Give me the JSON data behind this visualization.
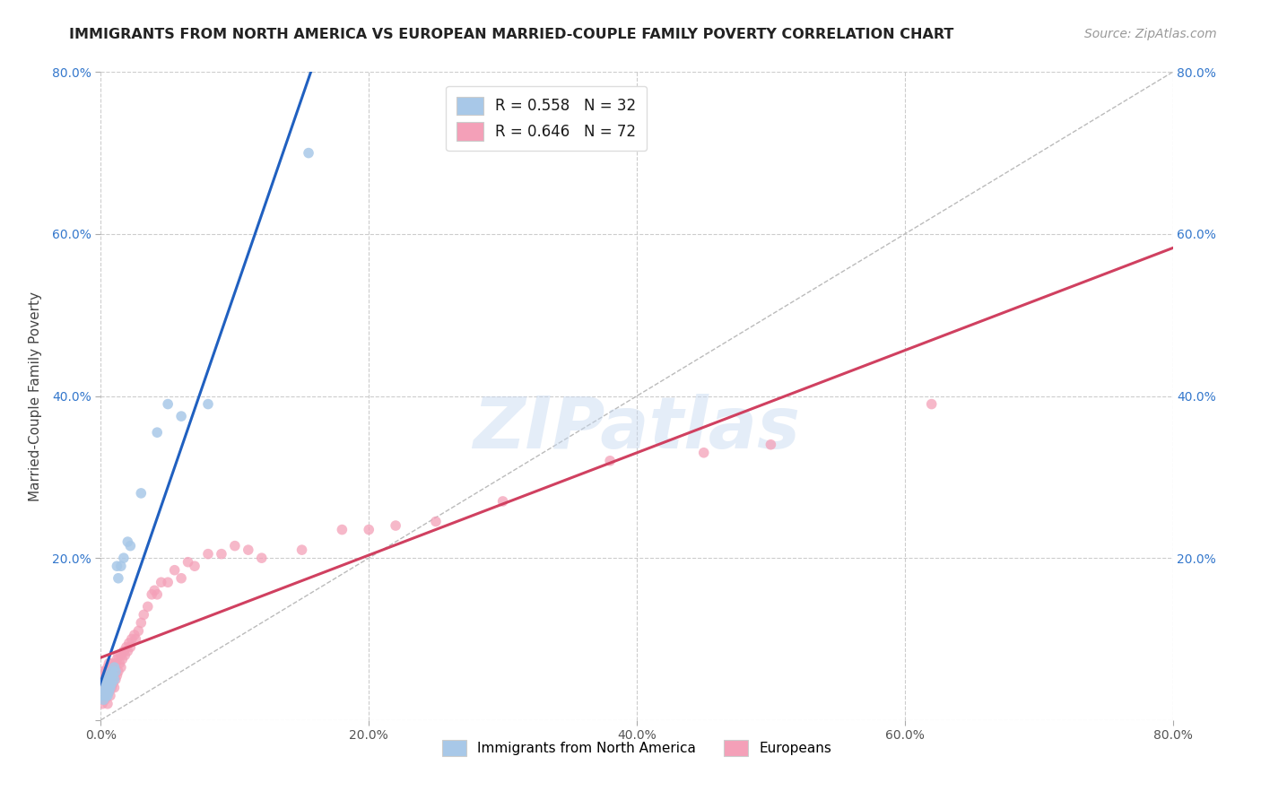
{
  "title": "IMMIGRANTS FROM NORTH AMERICA VS EUROPEAN MARRIED-COUPLE FAMILY POVERTY CORRELATION CHART",
  "source": "Source: ZipAtlas.com",
  "ylabel": "Married-Couple Family Poverty",
  "xlim": [
    0,
    0.8
  ],
  "ylim": [
    0,
    0.8
  ],
  "blue_color": "#a8c8e8",
  "pink_color": "#f4a0b8",
  "blue_line_color": "#2060c0",
  "pink_line_color": "#d04060",
  "diag_line_color": "#bbbbbb",
  "watermark": "ZIPatlas",
  "na_x": [
    0.001,
    0.002,
    0.002,
    0.003,
    0.003,
    0.004,
    0.004,
    0.004,
    0.005,
    0.005,
    0.006,
    0.006,
    0.007,
    0.007,
    0.008,
    0.008,
    0.009,
    0.01,
    0.01,
    0.011,
    0.012,
    0.013,
    0.015,
    0.017,
    0.02,
    0.022,
    0.03,
    0.042,
    0.05,
    0.06,
    0.08,
    0.155
  ],
  "na_y": [
    0.03,
    0.025,
    0.04,
    0.035,
    0.045,
    0.03,
    0.038,
    0.05,
    0.03,
    0.042,
    0.035,
    0.055,
    0.04,
    0.05,
    0.045,
    0.06,
    0.055,
    0.05,
    0.065,
    0.06,
    0.19,
    0.175,
    0.19,
    0.2,
    0.22,
    0.215,
    0.28,
    0.355,
    0.39,
    0.375,
    0.39,
    0.7
  ],
  "eu_x": [
    0.001,
    0.001,
    0.002,
    0.002,
    0.002,
    0.003,
    0.003,
    0.003,
    0.004,
    0.004,
    0.005,
    0.005,
    0.005,
    0.006,
    0.006,
    0.006,
    0.007,
    0.007,
    0.008,
    0.008,
    0.008,
    0.009,
    0.009,
    0.01,
    0.01,
    0.011,
    0.011,
    0.012,
    0.012,
    0.013,
    0.013,
    0.014,
    0.015,
    0.015,
    0.016,
    0.017,
    0.018,
    0.019,
    0.02,
    0.021,
    0.022,
    0.023,
    0.025,
    0.026,
    0.028,
    0.03,
    0.032,
    0.035,
    0.038,
    0.04,
    0.042,
    0.045,
    0.05,
    0.055,
    0.06,
    0.065,
    0.07,
    0.08,
    0.09,
    0.1,
    0.11,
    0.12,
    0.15,
    0.18,
    0.2,
    0.22,
    0.25,
    0.3,
    0.38,
    0.45,
    0.5,
    0.62
  ],
  "eu_y": [
    0.02,
    0.045,
    0.03,
    0.05,
    0.06,
    0.025,
    0.04,
    0.055,
    0.035,
    0.06,
    0.02,
    0.04,
    0.065,
    0.035,
    0.055,
    0.07,
    0.03,
    0.06,
    0.04,
    0.055,
    0.07,
    0.045,
    0.065,
    0.04,
    0.06,
    0.05,
    0.07,
    0.055,
    0.075,
    0.06,
    0.08,
    0.07,
    0.065,
    0.08,
    0.075,
    0.085,
    0.08,
    0.09,
    0.085,
    0.095,
    0.09,
    0.1,
    0.105,
    0.1,
    0.11,
    0.12,
    0.13,
    0.14,
    0.155,
    0.16,
    0.155,
    0.17,
    0.17,
    0.185,
    0.175,
    0.195,
    0.19,
    0.205,
    0.205,
    0.215,
    0.21,
    0.2,
    0.21,
    0.235,
    0.235,
    0.24,
    0.245,
    0.27,
    0.32,
    0.33,
    0.34,
    0.39
  ]
}
